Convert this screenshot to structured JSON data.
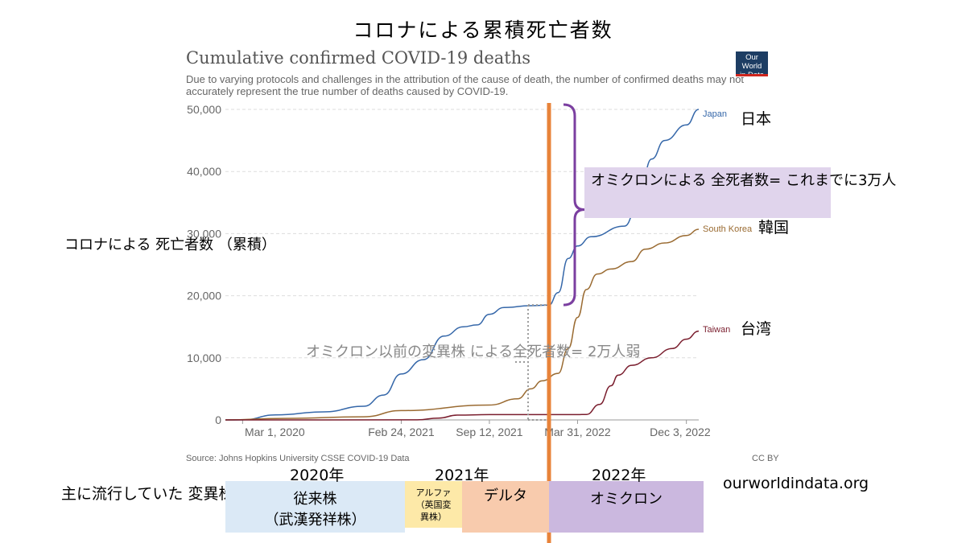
{
  "slide_title": "コロナによる累積死亡者数",
  "owid": {
    "title": "Cumulative confirmed COVID-19 deaths",
    "subtitle": "Due to varying protocols and challenges in the attribution of the cause of death, the number of confirmed deaths may not accurately represent the true number of deaths caused by COVID-19.",
    "logo_line1": "Our World",
    "logo_line2": "in Data",
    "source": "Source: Johns Hopkins University CSSE COVID-19 Data",
    "license": "CC BY"
  },
  "annotations": {
    "y_note": "コロナによる\n死亡者数\n（累積）",
    "pre_omicron": "オミクロン以前の変異株\nによる全死者数= 2万人弱",
    "omicron": "オミクロンによる\n全死者数= これまでに3万人",
    "japan_jp": "日本",
    "korea_jp": "韓国",
    "taiwan_jp": "台湾"
  },
  "variants": {
    "heading": "主に流行していた\n変異株",
    "year_2020": "2020年",
    "year_2021": "2021年",
    "year_2022": "2022年",
    "original": "従来株\n（武漢発祥株）",
    "alpha": "アルファ\n（英国変\n異株）",
    "delta": "デルタ",
    "omicron": "オミクロン"
  },
  "site_url": "ourworldindata.org",
  "colors": {
    "japan": "#3567a9",
    "south_korea": "#9a6b32",
    "taiwan": "#7a1e2e",
    "divider": "#e8833a",
    "brace": "#7b3fa0",
    "grid": "#dddddd"
  },
  "chart_data": {
    "type": "line",
    "title": "Cumulative confirmed COVID-19 deaths",
    "xlabel": "",
    "ylabel": "",
    "x_ticks": [
      "Mar 1, 2020",
      "Feb 24, 2021",
      "Sep 12, 2021",
      "Mar 31, 2022",
      "Dec 3, 2022"
    ],
    "x_range": [
      "2020-01-22",
      "2022-12-31"
    ],
    "y_ticks": [
      "0",
      "10,000",
      "20,000",
      "30,000",
      "40,000",
      "50,000"
    ],
    "ylim": [
      0,
      50000
    ],
    "grid": true,
    "series": [
      {
        "name": "Japan",
        "points": [
          [
            "2020-01-22",
            0
          ],
          [
            "2020-03-01",
            10
          ],
          [
            "2020-05-15",
            800
          ],
          [
            "2020-09-01",
            1300
          ],
          [
            "2020-12-01",
            2200
          ],
          [
            "2021-01-15",
            4000
          ],
          [
            "2021-02-24",
            7400
          ],
          [
            "2021-04-15",
            9700
          ],
          [
            "2021-06-01",
            13500
          ],
          [
            "2021-07-15",
            15000
          ],
          [
            "2021-08-15",
            15300
          ],
          [
            "2021-09-12",
            17000
          ],
          [
            "2021-10-15",
            18100
          ],
          [
            "2021-12-15",
            18400
          ],
          [
            "2022-01-25",
            18500
          ],
          [
            "2022-02-15",
            20500
          ],
          [
            "2022-03-10",
            26000
          ],
          [
            "2022-03-31",
            28000
          ],
          [
            "2022-05-01",
            29500
          ],
          [
            "2022-07-15",
            31200
          ],
          [
            "2022-08-15",
            34500
          ],
          [
            "2022-09-15",
            42000
          ],
          [
            "2022-10-15",
            45000
          ],
          [
            "2022-12-03",
            47500
          ],
          [
            "2022-12-31",
            50000
          ]
        ]
      },
      {
        "name": "South Korea",
        "points": [
          [
            "2020-01-22",
            0
          ],
          [
            "2020-06-01",
            250
          ],
          [
            "2020-12-01",
            500
          ],
          [
            "2021-02-24",
            1500
          ],
          [
            "2021-09-12",
            2400
          ],
          [
            "2021-11-15",
            3400
          ],
          [
            "2021-12-15",
            5000
          ],
          [
            "2022-01-10",
            6300
          ],
          [
            "2022-02-15",
            7500
          ],
          [
            "2022-03-10",
            11500
          ],
          [
            "2022-03-31",
            16500
          ],
          [
            "2022-04-20",
            21000
          ],
          [
            "2022-05-15",
            23500
          ],
          [
            "2022-06-15",
            24300
          ],
          [
            "2022-08-01",
            25500
          ],
          [
            "2022-09-01",
            27500
          ],
          [
            "2022-10-15",
            28500
          ],
          [
            "2022-12-03",
            29700
          ],
          [
            "2022-12-31",
            30700
          ]
        ]
      },
      {
        "name": "Taiwan",
        "points": [
          [
            "2020-01-22",
            0
          ],
          [
            "2021-04-01",
            12
          ],
          [
            "2021-05-20",
            300
          ],
          [
            "2021-07-01",
            780
          ],
          [
            "2021-09-12",
            850
          ],
          [
            "2022-03-31",
            855
          ],
          [
            "2022-04-20",
            880
          ],
          [
            "2022-05-20",
            2500
          ],
          [
            "2022-06-15",
            5500
          ],
          [
            "2022-07-01",
            7200
          ],
          [
            "2022-08-01",
            8800
          ],
          [
            "2022-09-15",
            10000
          ],
          [
            "2022-11-01",
            11500
          ],
          [
            "2022-12-03",
            13000
          ],
          [
            "2022-12-31",
            14300
          ]
        ]
      }
    ],
    "markers": {
      "omicron_start": "2022-01-25",
      "pre_omicron_total": 18500
    }
  }
}
